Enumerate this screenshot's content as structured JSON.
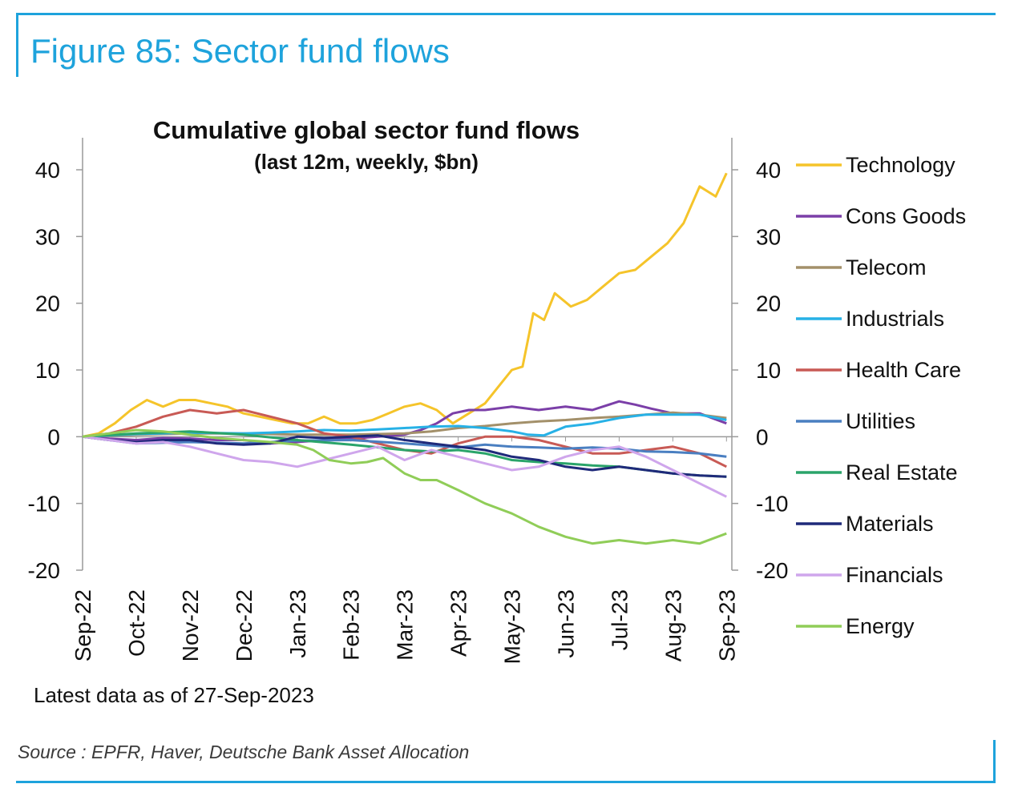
{
  "figure_title": "Figure 85: Sector fund flows",
  "source": "Source : EPFR, Haver, Deutsche Bank Asset Allocation",
  "note": "Latest data as of 27-Sep-2023",
  "chart_data": {
    "type": "line",
    "title": "Cumulative global sector fund flows",
    "subtitle": "(last 12m, weekly, $bn)",
    "xlabel": "",
    "ylabel": "",
    "ylim": [
      -20,
      40
    ],
    "yticks": [
      "40",
      "30",
      "20",
      "10",
      "0",
      "-10",
      "-20"
    ],
    "ytick_values": [
      40,
      30,
      20,
      10,
      0,
      -10,
      -20
    ],
    "yticks_right": [
      "40",
      "30",
      "20",
      "10",
      "0",
      "-10",
      "-20"
    ],
    "x_tick_labels": [
      "Sep-22",
      "Oct-22",
      "Nov-22",
      "Dec-22",
      "Jan-23",
      "Feb-23",
      "Mar-23",
      "Apr-23",
      "May-23",
      "Jun-23",
      "Jul-23",
      "Aug-23",
      "Sep-23"
    ],
    "x_range_months": [
      0,
      12.1
    ],
    "grid": false,
    "legend_position": "right",
    "series": [
      {
        "name": "Technology",
        "color": "#f5c42a",
        "x": [
          0,
          0.3,
          0.6,
          0.9,
          1.2,
          1.5,
          1.8,
          2.1,
          2.4,
          2.7,
          3.0,
          3.3,
          3.6,
          3.9,
          4.2,
          4.5,
          4.8,
          5.1,
          5.4,
          5.7,
          6.0,
          6.3,
          6.6,
          6.9,
          7.2,
          7.5,
          7.8,
          8.0,
          8.2,
          8.4,
          8.6,
          8.8,
          9.1,
          9.4,
          9.7,
          10.0,
          10.3,
          10.6,
          10.9,
          11.2,
          11.5,
          11.8,
          12.0
        ],
        "y": [
          0,
          0.5,
          2,
          4,
          5.5,
          4.5,
          5.5,
          5.5,
          5,
          4.5,
          3.5,
          3,
          2.5,
          2,
          2,
          3,
          2,
          2,
          2.5,
          3.5,
          4.5,
          5,
          4,
          2,
          3.5,
          5,
          8,
          10,
          10.5,
          18.5,
          17.5,
          21.5,
          19.5,
          20.5,
          22.5,
          24.5,
          25,
          27,
          29,
          32,
          37.5,
          36,
          39.5
        ]
      },
      {
        "name": "Cons Goods",
        "color": "#7b3fa8",
        "x": [
          0,
          0.5,
          1,
          1.5,
          2,
          2.5,
          3,
          3.5,
          4,
          4.5,
          5,
          5.5,
          6,
          6.3,
          6.6,
          6.9,
          7.2,
          7.5,
          8,
          8.5,
          9,
          9.5,
          10,
          10.3,
          10.6,
          11,
          11.5,
          12
        ],
        "y": [
          0,
          -0.3,
          -0.5,
          -0.2,
          -0.3,
          -0.5,
          -0.5,
          -1,
          -0.8,
          -0.5,
          -0.3,
          0,
          0.3,
          1,
          2,
          3.5,
          4,
          4,
          4.5,
          4,
          4.5,
          4,
          5.3,
          4.8,
          4.2,
          3.5,
          3.5,
          2
        ]
      },
      {
        "name": "Telecom",
        "color": "#a3906a",
        "x": [
          0,
          1,
          2,
          3,
          4,
          5,
          6,
          6.5,
          7,
          7.5,
          8,
          8.5,
          9,
          9.5,
          10,
          10.5,
          11,
          11.5,
          12
        ],
        "y": [
          0,
          0.3,
          0.5,
          0.5,
          0.3,
          0.3,
          0.5,
          0.8,
          1.3,
          1.6,
          2,
          2.3,
          2.5,
          2.8,
          3,
          3.3,
          3.6,
          3.3,
          2.8
        ]
      },
      {
        "name": "Industrials",
        "color": "#27b1e6",
        "x": [
          0,
          1,
          2,
          3,
          3.5,
          4,
          4.5,
          5,
          5.5,
          6,
          6.5,
          7,
          7.5,
          8,
          8.3,
          8.6,
          9,
          9.5,
          10,
          10.5,
          11,
          11.5,
          12
        ],
        "y": [
          0,
          0.4,
          0.6,
          0.5,
          0.6,
          0.8,
          1,
          0.9,
          1.1,
          1.3,
          1.5,
          1.6,
          1.3,
          0.8,
          0.3,
          0.2,
          1.5,
          2,
          2.8,
          3.3,
          3.3,
          3.3,
          2.5
        ]
      },
      {
        "name": "Health Care",
        "color": "#c85a55",
        "x": [
          0,
          0.5,
          1,
          1.5,
          2,
          2.5,
          3,
          3.5,
          4,
          4.5,
          5,
          5.5,
          6,
          6.5,
          7,
          7.5,
          8,
          8.5,
          9,
          9.5,
          10,
          10.5,
          11,
          11.5,
          12
        ],
        "y": [
          0,
          0.5,
          1.5,
          3,
          4,
          3.5,
          4,
          3,
          2,
          0.5,
          0,
          -1,
          -2,
          -2.5,
          -1,
          0,
          0,
          -0.5,
          -1.5,
          -2.5,
          -2.5,
          -2,
          -1.5,
          -2.5,
          -4.5
        ]
      },
      {
        "name": "Utilities",
        "color": "#4a7fc1",
        "x": [
          0,
          1,
          2,
          3,
          4,
          5,
          6,
          6.5,
          7,
          7.5,
          8,
          8.5,
          9,
          9.5,
          10,
          10.5,
          11,
          11.5,
          12
        ],
        "y": [
          0,
          -1,
          -0.8,
          -1,
          -0.6,
          -0.5,
          -1,
          -1.3,
          -1.6,
          -1.2,
          -1.5,
          -1.6,
          -1.8,
          -1.6,
          -1.8,
          -2.2,
          -2.3,
          -2.5,
          -3
        ]
      },
      {
        "name": "Real Estate",
        "color": "#2aa46a",
        "x": [
          0,
          1,
          2,
          3,
          4,
          5,
          6,
          6.5,
          7,
          7.5,
          8,
          8.5,
          9,
          9.5,
          10,
          10.5,
          11,
          11.5,
          12
        ],
        "y": [
          0,
          0.5,
          0.8,
          0.3,
          -0.5,
          -1.2,
          -2,
          -2.2,
          -2,
          -2.5,
          -3.5,
          -3.8,
          -4,
          -4.3,
          -4.5,
          -5,
          -5.5,
          -5.8,
          -6
        ]
      },
      {
        "name": "Materials",
        "color": "#1f2a7a",
        "x": [
          0,
          0.5,
          1,
          1.5,
          2,
          2.5,
          3,
          3.5,
          4,
          4.5,
          5,
          5.5,
          6,
          6.5,
          7,
          7.5,
          8,
          8.5,
          9,
          9.5,
          10,
          10.5,
          11,
          11.5,
          12
        ],
        "y": [
          0,
          -0.5,
          -0.8,
          -0.5,
          -0.5,
          -1,
          -1.2,
          -1,
          0,
          -0.2,
          0,
          0.2,
          -0.5,
          -1,
          -1.5,
          -2,
          -3,
          -3.5,
          -4.5,
          -5,
          -4.5,
          -5,
          -5.5,
          -5.8,
          -6
        ]
      },
      {
        "name": "Financials",
        "color": "#cfa6ec",
        "x": [
          0,
          0.5,
          1,
          1.5,
          2,
          2.5,
          3,
          3.5,
          4,
          4.5,
          5,
          5.5,
          6,
          6.5,
          7,
          7.5,
          8,
          8.5,
          9,
          9.5,
          10,
          10.5,
          11,
          11.5,
          12
        ],
        "y": [
          0,
          -0.5,
          -1,
          -0.8,
          -1.5,
          -2.5,
          -3.5,
          -3.8,
          -4.5,
          -3.5,
          -2.5,
          -1.5,
          -3.5,
          -2,
          -3,
          -4,
          -5,
          -4.5,
          -3,
          -2,
          -1.5,
          -3,
          -5,
          -7,
          -9
        ]
      },
      {
        "name": "Energy",
        "color": "#90cd58",
        "x": [
          0,
          0.5,
          1,
          1.5,
          2,
          2.5,
          3,
          3.5,
          4,
          4.3,
          4.6,
          5,
          5.3,
          5.6,
          6,
          6.3,
          6.6,
          7,
          7.5,
          8,
          8.5,
          9,
          9.5,
          10,
          10.5,
          11,
          11.5,
          12
        ],
        "y": [
          0,
          0.5,
          1,
          0.8,
          0.3,
          -0.2,
          -0.5,
          -0.8,
          -1.2,
          -2,
          -3.5,
          -4,
          -3.8,
          -3.2,
          -5.5,
          -6.5,
          -6.5,
          -8,
          -10,
          -11.5,
          -13.5,
          -15,
          -16,
          -15.5,
          -16,
          -15.5,
          -16,
          -14.5
        ]
      }
    ]
  }
}
